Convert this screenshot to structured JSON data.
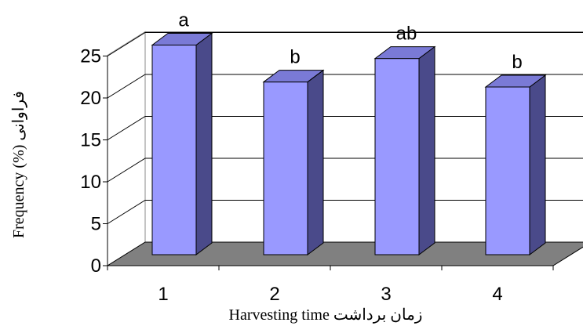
{
  "chart_data": {
    "type": "bar",
    "categories": [
      "1",
      "2",
      "3",
      "4"
    ],
    "values": [
      25,
      20.6,
      23.4,
      20
    ],
    "significance_labels": [
      "a",
      "b",
      "ab",
      "b"
    ],
    "ylim": [
      0,
      25
    ],
    "yticks": [
      "0",
      "5",
      "10",
      "15",
      "20",
      "25"
    ],
    "xlabel": "Harvesting time زمان برداشت",
    "ylabel": "Frequency (%) فراوانی",
    "grid": true,
    "three_d": true,
    "colors": {
      "bar_front": "#9999ff",
      "bar_side": "#4a4a8a",
      "bar_top": "#7a7ad6",
      "floor": "#808080",
      "wall": "#ffffff"
    }
  }
}
